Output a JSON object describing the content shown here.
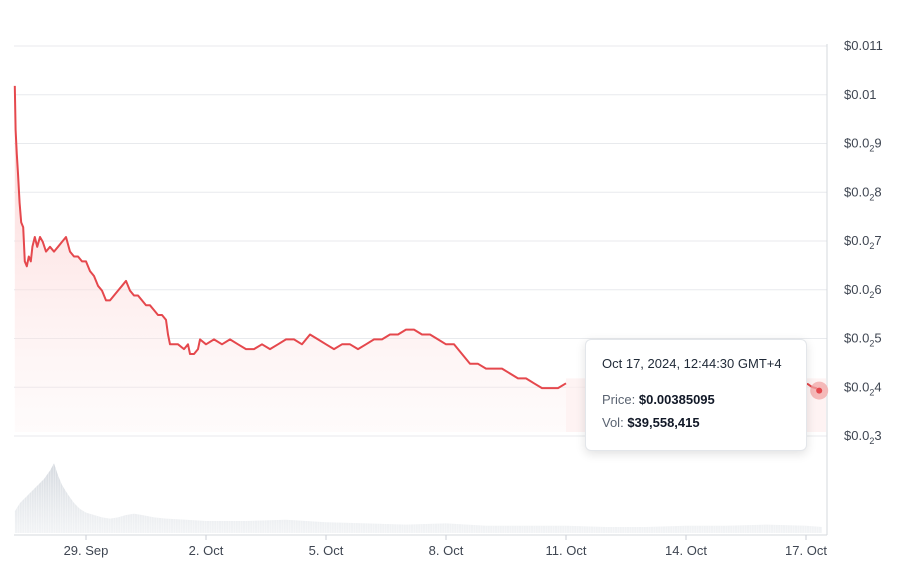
{
  "chart_data": {
    "type": "area",
    "y_ticks": [
      {
        "value": 0.011,
        "label": "$0.011"
      },
      {
        "value": 0.01,
        "label": "$0.01"
      },
      {
        "value": 0.009,
        "label": "$0.0",
        "sub": "2",
        "rest": "9"
      },
      {
        "value": 0.008,
        "label": "$0.0",
        "sub": "2",
        "rest": "8"
      },
      {
        "value": 0.007,
        "label": "$0.0",
        "sub": "2",
        "rest": "7"
      },
      {
        "value": 0.006,
        "label": "$0.0",
        "sub": "2",
        "rest": "6"
      },
      {
        "value": 0.005,
        "label": "$0.0",
        "sub": "2",
        "rest": "5"
      },
      {
        "value": 0.004,
        "label": "$0.0",
        "sub": "2",
        "rest": "4"
      },
      {
        "value": 0.003,
        "label": "$0.0",
        "sub": "2",
        "rest": "3"
      }
    ],
    "ylim": [
      0.003,
      0.011
    ],
    "x_ticks": [
      {
        "label": "29. Sep",
        "day": 29.0
      },
      {
        "label": "2. Oct",
        "day": 32.0
      },
      {
        "label": "5. Oct",
        "day": 35.0
      },
      {
        "label": "8. Oct",
        "day": 38.0
      },
      {
        "label": "11. Oct",
        "day": 41.0
      },
      {
        "label": "14. Oct",
        "day": 44.0
      },
      {
        "label": "17. Oct",
        "day": 47.0
      }
    ],
    "xlim": [
      27.2,
      47.5
    ],
    "series": [
      {
        "kind": "price",
        "color": "#e5484d",
        "points": [
          [
            27.22,
            0.0101
          ],
          [
            27.24,
            0.0092
          ],
          [
            27.27,
            0.0087
          ],
          [
            27.3,
            0.0083
          ],
          [
            27.34,
            0.0077
          ],
          [
            27.38,
            0.0073
          ],
          [
            27.43,
            0.0072
          ],
          [
            27.47,
            0.0065
          ],
          [
            27.52,
            0.0064
          ],
          [
            27.57,
            0.0066
          ],
          [
            27.62,
            0.0065
          ],
          [
            27.66,
            0.0068
          ],
          [
            27.72,
            0.007
          ],
          [
            27.78,
            0.0068
          ],
          [
            27.85,
            0.007
          ],
          [
            27.92,
            0.0069
          ],
          [
            28.0,
            0.0067
          ],
          [
            28.1,
            0.0068
          ],
          [
            28.2,
            0.0067
          ],
          [
            28.3,
            0.0068
          ],
          [
            28.4,
            0.0069
          ],
          [
            28.5,
            0.007
          ],
          [
            28.6,
            0.0067
          ],
          [
            28.7,
            0.0066
          ],
          [
            28.8,
            0.0066
          ],
          [
            28.9,
            0.0065
          ],
          [
            29.0,
            0.0065
          ],
          [
            29.1,
            0.0063
          ],
          [
            29.2,
            0.0062
          ],
          [
            29.3,
            0.006
          ],
          [
            29.4,
            0.0059
          ],
          [
            29.5,
            0.0057
          ],
          [
            29.6,
            0.0057
          ],
          [
            29.7,
            0.0058
          ],
          [
            29.8,
            0.0059
          ],
          [
            29.9,
            0.006
          ],
          [
            30.0,
            0.0061
          ],
          [
            30.1,
            0.0059
          ],
          [
            30.2,
            0.0058
          ],
          [
            30.3,
            0.0058
          ],
          [
            30.4,
            0.0057
          ],
          [
            30.5,
            0.0056
          ],
          [
            30.6,
            0.0056
          ],
          [
            30.7,
            0.0055
          ],
          [
            30.8,
            0.0054
          ],
          [
            30.9,
            0.0054
          ],
          [
            31.0,
            0.0053
          ],
          [
            31.05,
            0.005
          ],
          [
            31.1,
            0.0048
          ],
          [
            31.2,
            0.0048
          ],
          [
            31.3,
            0.0048
          ],
          [
            31.45,
            0.0047
          ],
          [
            31.55,
            0.0048
          ],
          [
            31.6,
            0.0046
          ],
          [
            31.7,
            0.0046
          ],
          [
            31.8,
            0.0047
          ],
          [
            31.85,
            0.0049
          ],
          [
            32.0,
            0.0048
          ],
          [
            32.2,
            0.0049
          ],
          [
            32.4,
            0.0048
          ],
          [
            32.6,
            0.0049
          ],
          [
            32.8,
            0.0048
          ],
          [
            33.0,
            0.0047
          ],
          [
            33.2,
            0.0047
          ],
          [
            33.4,
            0.0048
          ],
          [
            33.6,
            0.0047
          ],
          [
            33.8,
            0.0048
          ],
          [
            34.0,
            0.0049
          ],
          [
            34.2,
            0.0049
          ],
          [
            34.4,
            0.0048
          ],
          [
            34.6,
            0.005
          ],
          [
            34.8,
            0.0049
          ],
          [
            35.0,
            0.0048
          ],
          [
            35.2,
            0.0047
          ],
          [
            35.4,
            0.0048
          ],
          [
            35.6,
            0.0048
          ],
          [
            35.8,
            0.0047
          ],
          [
            36.0,
            0.0048
          ],
          [
            36.2,
            0.0049
          ],
          [
            36.4,
            0.0049
          ],
          [
            36.6,
            0.005
          ],
          [
            36.8,
            0.005
          ],
          [
            37.0,
            0.0051
          ],
          [
            37.2,
            0.0051
          ],
          [
            37.4,
            0.005
          ],
          [
            37.6,
            0.005
          ],
          [
            37.8,
            0.0049
          ],
          [
            38.0,
            0.0048
          ],
          [
            38.2,
            0.0048
          ],
          [
            38.4,
            0.0046
          ],
          [
            38.6,
            0.0044
          ],
          [
            38.8,
            0.0044
          ],
          [
            39.0,
            0.0043
          ],
          [
            39.2,
            0.0043
          ],
          [
            39.4,
            0.0043
          ],
          [
            39.6,
            0.0042
          ],
          [
            39.8,
            0.0041
          ],
          [
            40.0,
            0.0041
          ],
          [
            40.2,
            0.004
          ],
          [
            40.4,
            0.0039
          ],
          [
            40.6,
            0.0039
          ],
          [
            40.8,
            0.0039
          ],
          [
            41.0,
            0.004
          ]
        ],
        "hidden_until": 41.1,
        "tail": [
          [
            46.93,
            0.004
          ],
          [
            47.05,
            0.00398
          ],
          [
            47.15,
            0.00392
          ],
          [
            47.25,
            0.0039
          ],
          [
            47.33,
            0.00385
          ]
        ]
      }
    ],
    "volume": [
      [
        27.22,
        0.18
      ],
      [
        27.35,
        0.25
      ],
      [
        27.5,
        0.3
      ],
      [
        27.65,
        0.35
      ],
      [
        27.8,
        0.4
      ],
      [
        27.95,
        0.45
      ],
      [
        28.1,
        0.52
      ],
      [
        28.2,
        0.58
      ],
      [
        28.3,
        0.48
      ],
      [
        28.4,
        0.4
      ],
      [
        28.55,
        0.32
      ],
      [
        28.7,
        0.25
      ],
      [
        28.85,
        0.2
      ],
      [
        29.0,
        0.17
      ],
      [
        29.2,
        0.15
      ],
      [
        29.4,
        0.13
      ],
      [
        29.6,
        0.12
      ],
      [
        29.8,
        0.13
      ],
      [
        30.0,
        0.15
      ],
      [
        30.2,
        0.16
      ],
      [
        30.4,
        0.15
      ],
      [
        30.7,
        0.13
      ],
      [
        31.0,
        0.12
      ],
      [
        31.5,
        0.11
      ],
      [
        32.0,
        0.1
      ],
      [
        33.0,
        0.1
      ],
      [
        34.0,
        0.11
      ],
      [
        35.0,
        0.09
      ],
      [
        36.0,
        0.08
      ],
      [
        37.0,
        0.07
      ],
      [
        38.0,
        0.08
      ],
      [
        39.0,
        0.06
      ],
      [
        40.0,
        0.06
      ],
      [
        41.0,
        0.06
      ],
      [
        42.0,
        0.05
      ],
      [
        43.0,
        0.05
      ],
      [
        44.0,
        0.06
      ],
      [
        45.0,
        0.06
      ],
      [
        46.0,
        0.07
      ],
      [
        47.0,
        0.06
      ],
      [
        47.4,
        0.05
      ]
    ],
    "grid": true
  },
  "tooltip": {
    "date": "Oct 17, 2024, 12:44:30 GMT+4",
    "price_label": "Price:",
    "price_value": "$0.00385095",
    "vol_label": "Vol:",
    "vol_value": "$39,558,415"
  },
  "colors": {
    "line": "#e5484d",
    "area_top": "#fcd5d5",
    "grid": "#e8eaed",
    "volume": "#d9dde3",
    "marker": "#f2a5a5"
  }
}
